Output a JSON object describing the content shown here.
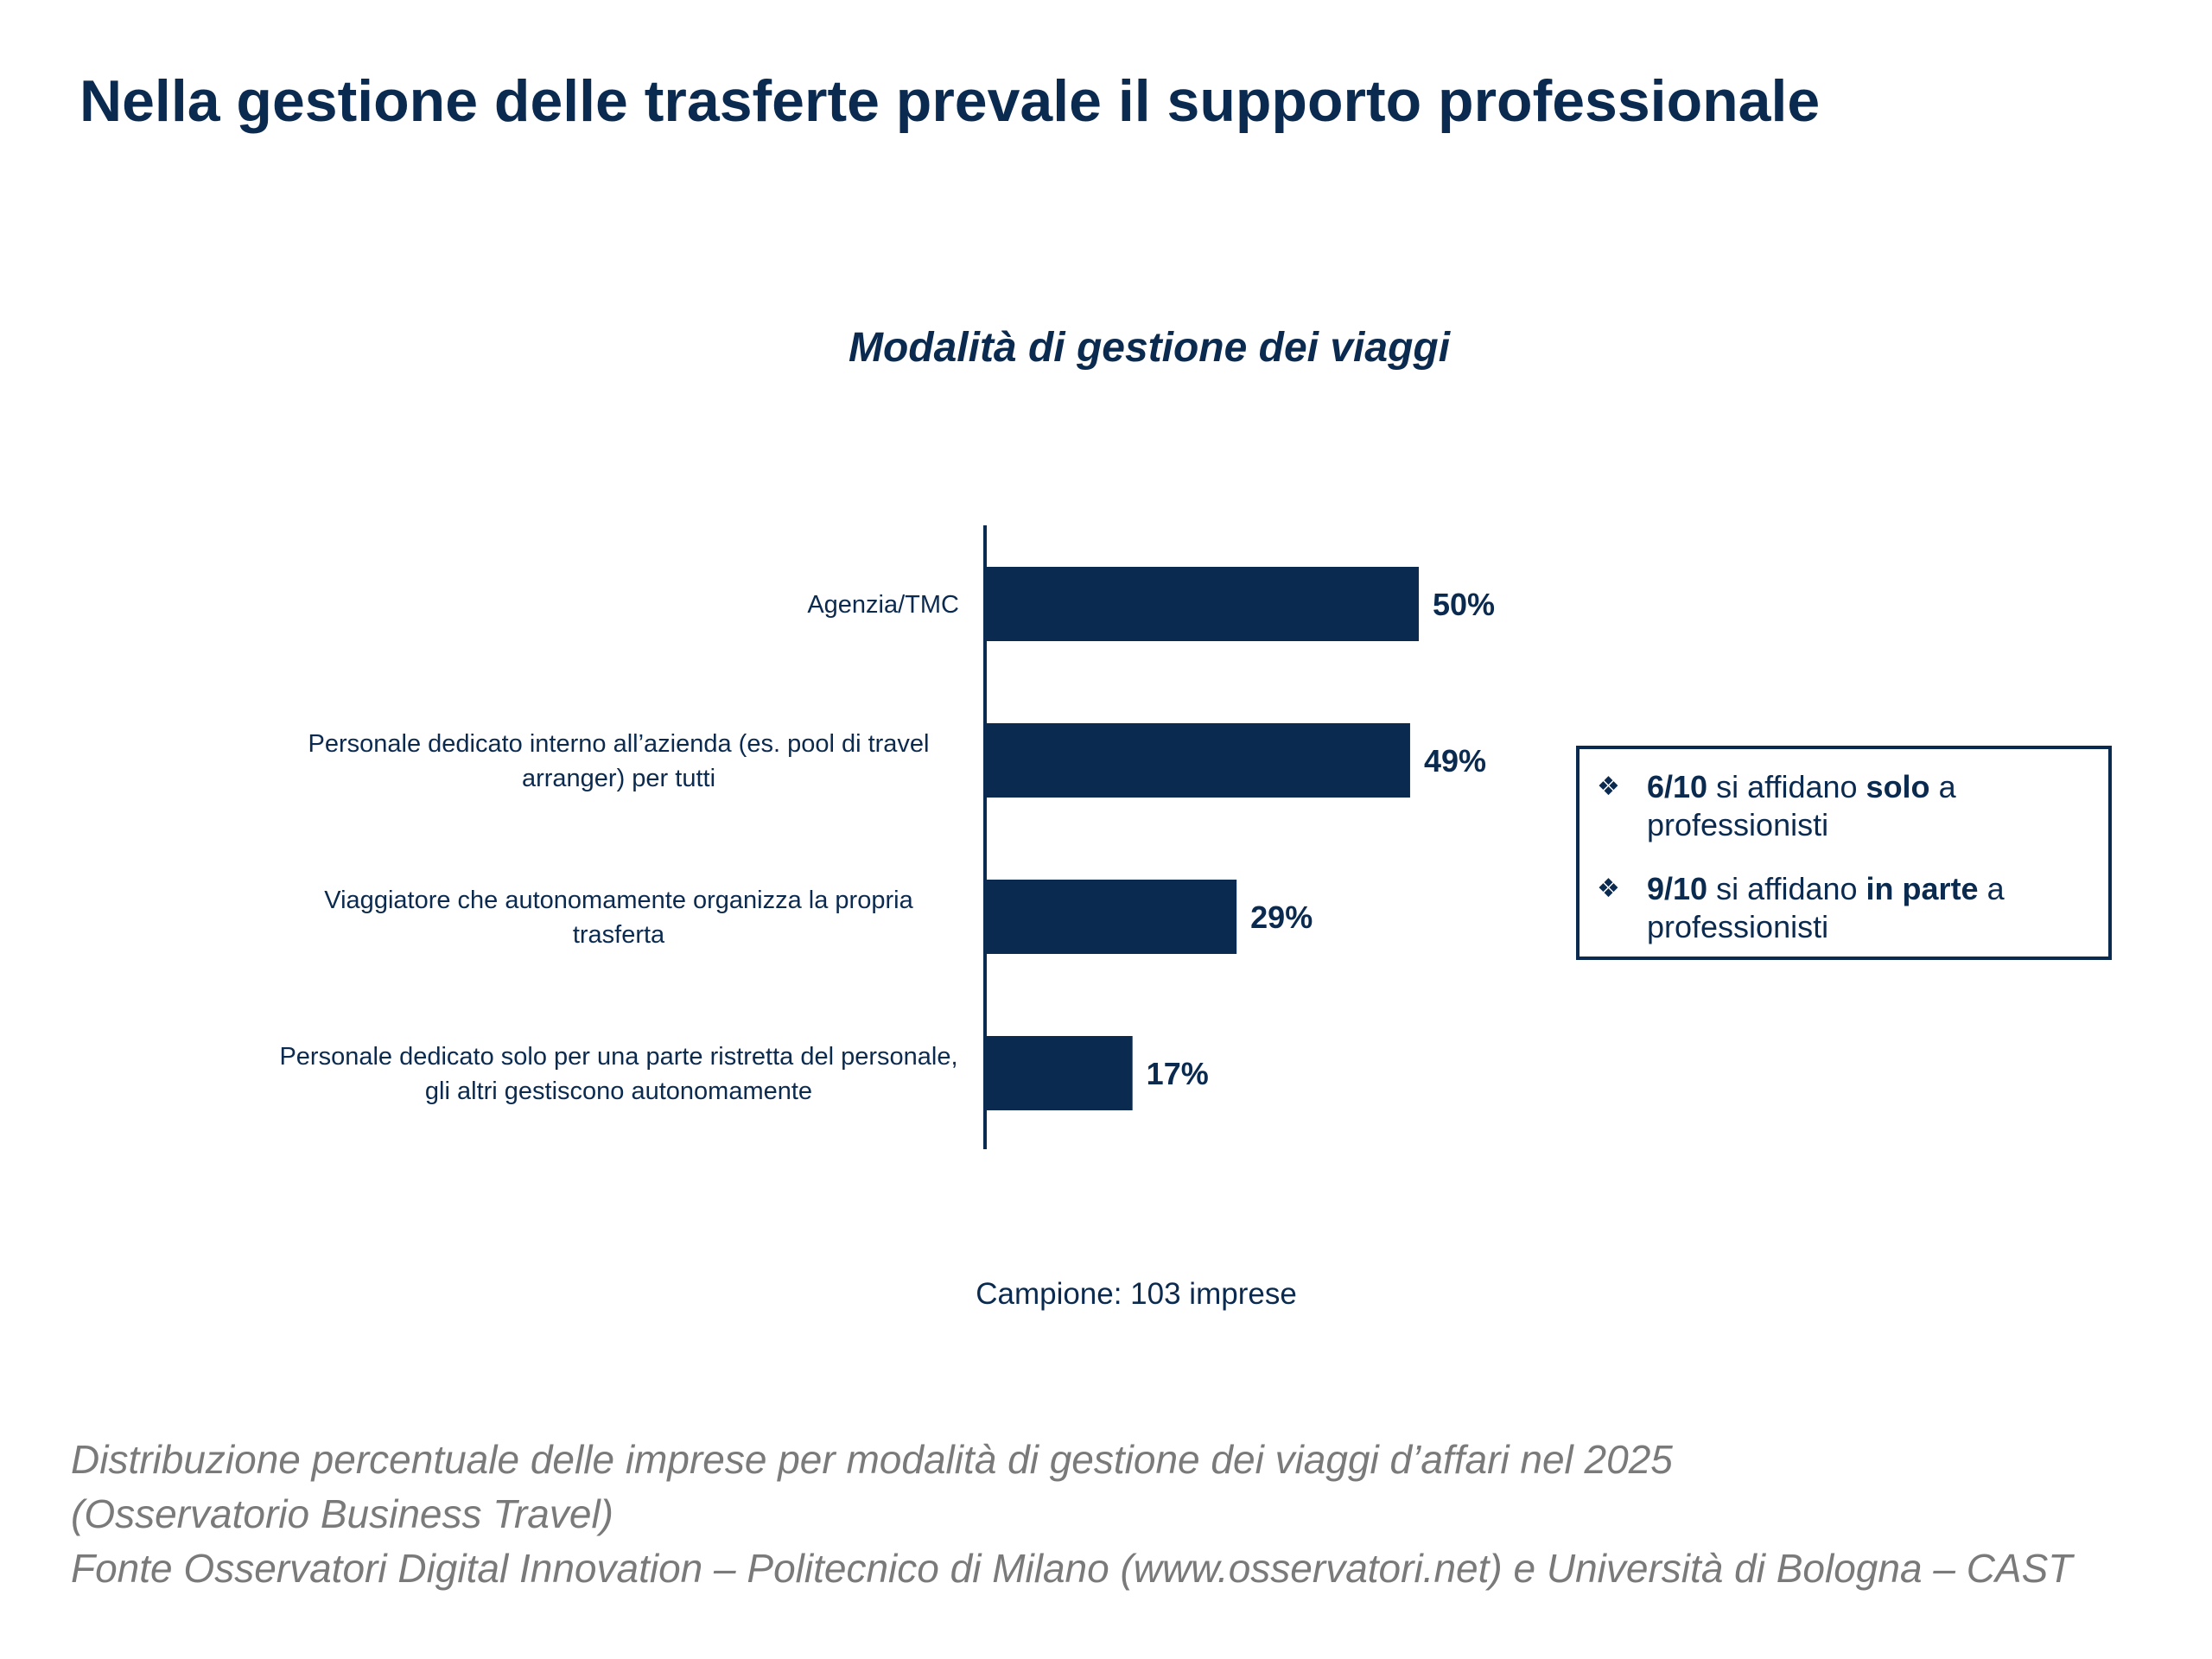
{
  "page": {
    "title": "Nella gestione delle trasferte prevale il supporto professionale"
  },
  "chart_data": {
    "type": "bar",
    "orientation": "horizontal",
    "title": "Modalità di gestione dei viaggi",
    "categories": [
      [
        "Agenzia/TMC"
      ],
      [
        "Personale dedicato interno all’azienda (es. pool di travel",
        "arranger) per tutti"
      ],
      [
        "Viaggiatore che autonomamente organizza la propria",
        "trasferta"
      ],
      [
        "Personale dedicato solo per una parte ristretta del personale,",
        "gli altri gestiscono autonomamente"
      ]
    ],
    "values": [
      50,
      49,
      29,
      17
    ],
    "value_labels": [
      "50%",
      "49%",
      "29%",
      "17%"
    ],
    "xlim": [
      0,
      100
    ],
    "unit": "%",
    "grid": false,
    "legend": "none",
    "bar_color": "#0b2a4f"
  },
  "insights": [
    {
      "bold1": "6/10",
      "mid": " si affidano ",
      "bold2": "solo",
      "end": " a professionisti"
    },
    {
      "bold1": "9/10",
      "mid": " si affidano ",
      "bold2": "in parte",
      "end": " a professionisti"
    }
  ],
  "sample": "Campione: 103 imprese",
  "caption": {
    "line1": "Distribuzione percentuale delle imprese per modalità di gestione dei viaggi d’affari nel 2025",
    "line2": "(Osservatorio Business Travel)",
    "line3": "Fonte Osservatori Digital Innovation – Politecnico di Milano (www.osservatori.net) e Università di Bologna – CAST"
  },
  "icons": {
    "bullet": "diamond-bullet-icon"
  },
  "colors": {
    "primary": "#0b2a4f",
    "caption": "#7a7a7a"
  }
}
